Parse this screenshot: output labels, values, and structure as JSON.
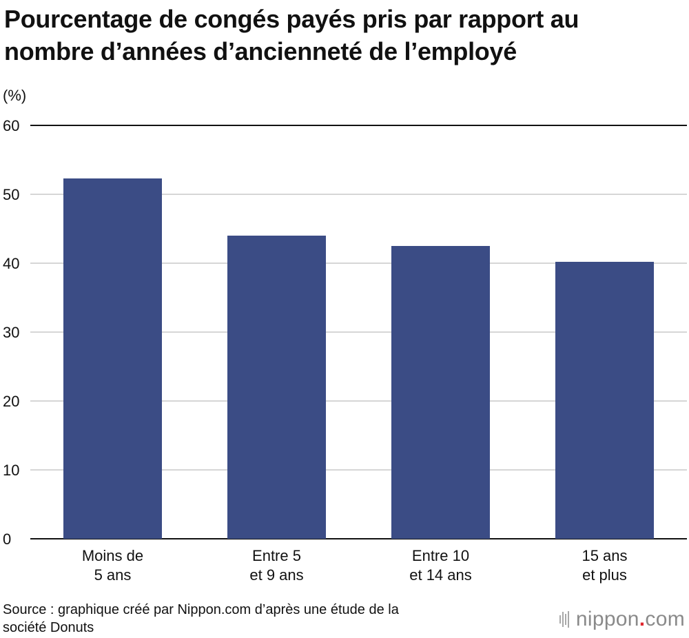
{
  "header": {
    "title_line1": "Pourcentage de congés payés pris par rapport au",
    "title_line2": "nombre d’années d’ancienneté de l’employé"
  },
  "unit_label": "(%)",
  "chart_data": {
    "type": "bar",
    "categories": [
      [
        "Moins de",
        "5 ans"
      ],
      [
        "Entre 5",
        "et 9 ans"
      ],
      [
        "Entre 10",
        "et 14 ans"
      ],
      [
        "15 ans",
        "et plus"
      ]
    ],
    "values": [
      52.3,
      44.0,
      42.5,
      40.2
    ],
    "ylim": [
      0,
      60
    ],
    "yticks": [
      0,
      10,
      20,
      30,
      40,
      50,
      60
    ],
    "bar_color": "#3b4c85",
    "gridline_color": "#c8c8c8",
    "axis_color": "#111111",
    "grid": true
  },
  "footer": {
    "source_line1": "Source : graphique créé par Nippon.com d’après une étude de la",
    "source_line2": "société Donuts",
    "brand_name": "nippon",
    "brand_dot": ".",
    "brand_tld": "com",
    "brand_accent": "#e0262e"
  }
}
